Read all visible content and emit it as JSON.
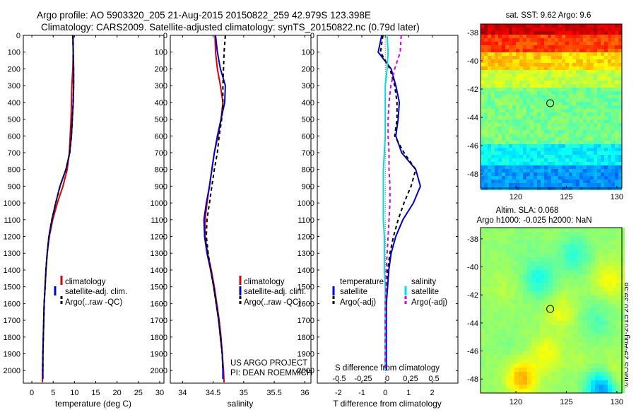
{
  "header": {
    "line1": "Argo profile: AO 5903320_205 21-Aug-2015 20150822_259 42.979S 123.398E",
    "line2": "Climatology: CARS2009. Satellite-adjusted climatology: synTS_20150822.nc (0.79d later)"
  },
  "side_stamp": "©IMOS 29-Aug-2015 20:39:58",
  "colors": {
    "clim": "#dd0000",
    "sat": "#0000cc",
    "argo": "#000000",
    "sat_s": "#00dddd",
    "argo_s": "#dd00dd"
  },
  "chart_data": [
    {
      "type": "line",
      "xlabel": "temperature (deg C)",
      "xlim": [
        -2,
        31
      ],
      "ylim": [
        2075,
        0
      ],
      "xticks": [
        0,
        5,
        10,
        15,
        20,
        25,
        30
      ],
      "yticks": [
        0,
        100,
        200,
        300,
        400,
        500,
        600,
        700,
        800,
        900,
        1000,
        1100,
        1200,
        1300,
        1400,
        1500,
        1600,
        1700,
        1800,
        1900,
        2000
      ],
      "legend": [
        "climatology",
        "satellite-adj. clim.",
        "Argo(..raw -QC)"
      ],
      "legend_placement": "lower-right",
      "series": [
        {
          "name": "climatology",
          "style": "clim",
          "x": [
            9.7,
            9.7,
            9.6,
            9.4,
            9.3,
            9.2,
            9.0,
            8.8,
            8.3,
            7.3,
            6.0,
            4.9,
            4.1,
            3.6,
            3.3,
            3.1,
            2.9,
            2.8,
            2.7,
            2.6,
            2.5,
            2.5
          ],
          "y": [
            0,
            100,
            200,
            300,
            400,
            500,
            600,
            700,
            800,
            900,
            1000,
            1100,
            1200,
            1300,
            1400,
            1500,
            1600,
            1700,
            1800,
            1900,
            2000,
            2070
          ]
        },
        {
          "name": "satellite-adj. clim.",
          "style": "sat",
          "x": [
            9.6,
            9.7,
            9.8,
            9.8,
            9.7,
            9.5,
            9.3,
            8.9,
            8.0,
            6.6,
            5.6,
            4.7,
            4.0,
            3.6,
            3.3,
            3.1,
            2.9,
            2.8,
            2.7,
            2.6,
            2.6,
            2.6
          ],
          "y": [
            0,
            100,
            200,
            300,
            400,
            500,
            600,
            700,
            800,
            900,
            1000,
            1100,
            1200,
            1300,
            1400,
            1500,
            1600,
            1700,
            1800,
            1900,
            2000,
            2050
          ]
        },
        {
          "name": "Argo(..raw -QC)",
          "style": "argo",
          "x": [
            9.6,
            9.7,
            9.8,
            9.8,
            9.7,
            9.5,
            9.3,
            8.9,
            8.0,
            6.6,
            5.6,
            4.7,
            4.0,
            3.6,
            3.3,
            3.1,
            2.9,
            2.8,
            2.7,
            2.6,
            2.6
          ],
          "y": [
            0,
            100,
            200,
            300,
            400,
            500,
            600,
            700,
            800,
            900,
            1000,
            1100,
            1200,
            1300,
            1400,
            1500,
            1600,
            1700,
            1800,
            1900,
            2000
          ]
        }
      ]
    },
    {
      "type": "line",
      "xlabel": "salinity",
      "xlim": [
        33.8,
        36.1
      ],
      "ylim": [
        2075,
        0
      ],
      "xticks": [
        34,
        34.5,
        35,
        35.5,
        36
      ],
      "legend": [
        "climatology",
        "satellite-adj. clim.",
        "Argo(..raw -QC)"
      ],
      "legend_placement": "lower-right",
      "annotation": [
        "US ARGO PROJECT",
        "PI: DEAN ROEMMICH"
      ],
      "series": [
        {
          "name": "climatology",
          "style": "clim",
          "x": [
            34.53,
            34.54,
            34.57,
            34.62,
            34.66,
            34.63,
            34.58,
            34.52,
            34.48,
            34.44,
            34.4,
            34.37,
            34.37,
            34.41,
            34.47,
            34.52,
            34.56,
            34.6,
            34.63,
            34.65,
            34.67,
            34.68
          ],
          "y": [
            0,
            100,
            200,
            300,
            400,
            500,
            600,
            700,
            800,
            900,
            1000,
            1100,
            1200,
            1300,
            1400,
            1500,
            1600,
            1700,
            1800,
            1900,
            2000,
            2070
          ]
        },
        {
          "name": "satellite-adj. clim.",
          "style": "sat",
          "x": [
            34.54,
            34.57,
            34.62,
            34.7,
            34.69,
            34.63,
            34.57,
            34.52,
            34.48,
            34.44,
            34.39,
            34.35,
            34.36,
            34.4,
            34.46,
            34.51,
            34.55,
            34.59,
            34.62,
            34.65,
            34.66,
            34.66
          ],
          "y": [
            0,
            100,
            200,
            300,
            400,
            500,
            600,
            700,
            800,
            900,
            1000,
            1100,
            1200,
            1300,
            1400,
            1500,
            1600,
            1700,
            1800,
            1900,
            2000,
            2050
          ]
        },
        {
          "name": "Argo(..raw -QC)",
          "style": "argo",
          "x": [
            34.7,
            34.68,
            34.67,
            34.66,
            34.66,
            34.64,
            34.6,
            34.57,
            34.52,
            34.48,
            34.44,
            34.4,
            34.39,
            34.42,
            34.46,
            34.51,
            34.55,
            34.59,
            34.62,
            34.65,
            34.66
          ],
          "y": [
            0,
            100,
            200,
            300,
            400,
            500,
            600,
            700,
            800,
            900,
            1000,
            1100,
            1200,
            1300,
            1400,
            1500,
            1600,
            1700,
            1800,
            1900,
            2000
          ]
        }
      ]
    },
    {
      "type": "line",
      "xlabel": "T difference from climatology",
      "xlim": [
        -2.9,
        3.1
      ],
      "ylim": [
        2075,
        0
      ],
      "xticks": [
        -2,
        -1,
        0,
        1,
        2
      ],
      "top_xlabel": "S difference from climatology",
      "top_xtick_labels": [
        "-0.5",
        "-0.25",
        "0",
        "0.25",
        "0.5"
      ],
      "legend_left_title": "temperature",
      "legend_right_title": "salinity",
      "legend_left": [
        "satellite",
        "Argo(-adj)"
      ],
      "legend_right": [
        "satellite",
        "Argo(-adj)"
      ],
      "legend_placement": "lower-center",
      "series": [
        {
          "name": "temperature satellite",
          "style": "sat",
          "x": [
            -0.15,
            -0.3,
            0.25,
            0.45,
            0.6,
            0.55,
            0.45,
            0.7,
            1.3,
            1.5,
            1.2,
            0.75,
            0.45,
            0.25,
            0.15,
            0.1,
            0.05,
            0.05,
            0.05,
            0.05,
            0.05
          ],
          "y": [
            0,
            100,
            200,
            300,
            400,
            500,
            600,
            700,
            800,
            900,
            1000,
            1100,
            1200,
            1300,
            1400,
            1500,
            1600,
            1700,
            1800,
            1900,
            2000
          ]
        },
        {
          "name": "temperature Argo(-adj)",
          "style": "argo",
          "x": [
            -0.1,
            -0.2,
            0.2,
            0.4,
            0.5,
            0.5,
            0.4,
            0.8,
            1.3,
            1.1,
            0.8,
            0.55,
            0.35,
            0.2,
            0.1,
            0.05,
            0.05,
            0.0,
            0.0,
            0.0,
            0.0
          ],
          "y": [
            0,
            100,
            200,
            300,
            400,
            500,
            600,
            700,
            800,
            900,
            1000,
            1100,
            1200,
            1300,
            1400,
            1500,
            1600,
            1700,
            1800,
            1900,
            2000
          ]
        },
        {
          "name": "salinity satellite",
          "style": "sat_s",
          "units": "S",
          "x": [
            0.02,
            0.03,
            0.02,
            0.0,
            0.0,
            0.0,
            0.0,
            -0.01,
            -0.02,
            -0.02,
            -0.02,
            -0.02,
            -0.01,
            -0.01,
            -0.01,
            0.0,
            0.0,
            0.0,
            0.0,
            0.0,
            0.0
          ],
          "y": [
            0,
            100,
            200,
            300,
            400,
            500,
            600,
            700,
            800,
            900,
            1000,
            1100,
            1200,
            1300,
            1400,
            1500,
            1600,
            1700,
            1800,
            1900,
            2000
          ]
        },
        {
          "name": "salinity Argo(-adj)",
          "style": "argo_s",
          "units": "S",
          "x": [
            0.17,
            0.16,
            0.1,
            0.06,
            0.04,
            0.03,
            0.03,
            0.04,
            0.04,
            0.05,
            0.05,
            0.04,
            0.03,
            0.02,
            0.01,
            0.01,
            0.0,
            0.0,
            0.0,
            0.0,
            0.0
          ],
          "y": [
            0,
            100,
            200,
            300,
            400,
            500,
            600,
            700,
            800,
            900,
            1000,
            1100,
            1200,
            1300,
            1400,
            1500,
            1600,
            1700,
            1800,
            1900,
            2000
          ]
        }
      ]
    },
    {
      "type": "heatmap",
      "title": "sat. SST: 9.62 Argo: 9.6",
      "xlim": [
        116.5,
        130.5
      ],
      "ylim": [
        -49,
        -37.4
      ],
      "xticks": [
        120,
        125,
        130
      ],
      "yticks": [
        -38,
        -40,
        -42,
        -44,
        -46,
        -48
      ],
      "marker": {
        "lon": 123.4,
        "lat": -43.0
      }
    },
    {
      "type": "heatmap",
      "title": [
        "Altim. SLA: 0.068",
        "Argo h1000: -0.025 h2000: NaN"
      ],
      "xlim": [
        116.5,
        130.5
      ],
      "ylim": [
        -49,
        -37.2
      ],
      "xticks": [
        120,
        125,
        130
      ],
      "yticks": [
        -38,
        -40,
        -42,
        -44,
        -46,
        -48
      ],
      "marker": {
        "lon": 123.4,
        "lat": -43.0
      }
    }
  ]
}
